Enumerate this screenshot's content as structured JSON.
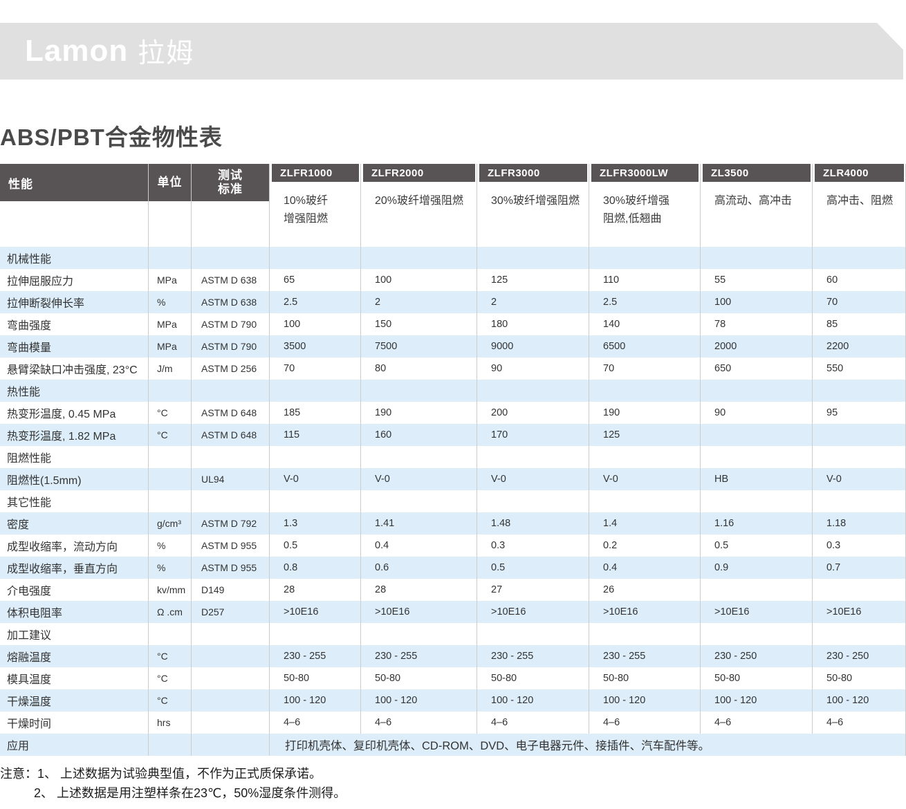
{
  "banner": {
    "brand_latin": "Lamon",
    "brand_cn": "拉姆"
  },
  "page_title": "ABS/PBT合金物性表",
  "colors": {
    "banner_bg": "#e0e0e0",
    "header_bg": "#585355",
    "row_blue": "#ddeefa",
    "separator": "#cbcbcb"
  },
  "table": {
    "header": {
      "property": "性能",
      "unit": "单位",
      "standard": "测试\n标准"
    },
    "products": [
      {
        "name": "ZLFR1000",
        "desc": "10%玻纤\n增强阻燃"
      },
      {
        "name": "ZLFR2000",
        "desc": "20%玻纤增强阻燃"
      },
      {
        "name": "ZLFR3000",
        "desc": "30%玻纤增强阻燃"
      },
      {
        "name": "ZLFR3000LW",
        "desc": "30%玻纤增强\n阻燃,低翘曲"
      },
      {
        "name": "ZL3500",
        "desc": "高流动、高冲击"
      },
      {
        "name": "ZLR4000",
        "desc": "高冲击、阻燃"
      }
    ],
    "rows": [
      {
        "type": "section",
        "label": "机械性能"
      },
      {
        "type": "data",
        "label": "拉伸屈服应力",
        "unit": "MPa",
        "standard": "ASTM D 638",
        "values": [
          "65",
          "100",
          "125",
          "110",
          "55",
          "60"
        ]
      },
      {
        "type": "data",
        "label": "拉伸断裂伸长率",
        "unit": "%",
        "standard": "ASTM D 638",
        "values": [
          "2.5",
          "2",
          "2",
          "2.5",
          "100",
          "70"
        ]
      },
      {
        "type": "data",
        "label": "弯曲强度",
        "unit": "MPa",
        "standard": "ASTM D 790",
        "values": [
          "100",
          "150",
          "180",
          "140",
          "78",
          "85"
        ]
      },
      {
        "type": "data",
        "label": "弯曲模量",
        "unit": "MPa",
        "standard": "ASTM D 790",
        "values": [
          "3500",
          "7500",
          "9000",
          "6500",
          "2000",
          "2200"
        ]
      },
      {
        "type": "data",
        "label": "悬臂梁缺口冲击强度, 23°C",
        "unit": "J/m",
        "standard": "ASTM D 256",
        "values": [
          "70",
          "80",
          "90",
          "70",
          "650",
          "550"
        ]
      },
      {
        "type": "section",
        "label": "热性能"
      },
      {
        "type": "data",
        "label": "热变形温度, 0.45 MPa",
        "unit": "°C",
        "standard": "ASTM D 648",
        "values": [
          "185",
          "190",
          "200",
          "190",
          "90",
          "95"
        ]
      },
      {
        "type": "data",
        "label": "热变形温度, 1.82 MPa",
        "unit": "°C",
        "standard": "ASTM D 648",
        "values": [
          "115",
          "160",
          "170",
          "125",
          "",
          ""
        ]
      },
      {
        "type": "section",
        "label": "阻燃性能"
      },
      {
        "type": "data",
        "label": "阻燃性(1.5mm)",
        "unit": "",
        "standard": "UL94",
        "values": [
          "V-0",
          "V-0",
          "V-0",
          "V-0",
          "HB",
          "V-0"
        ]
      },
      {
        "type": "section",
        "label": "其它性能"
      },
      {
        "type": "data",
        "label": "密度",
        "unit": "g/cm³",
        "standard": "ASTM D 792",
        "values": [
          "1.3",
          "1.41",
          "1.48",
          "1.4",
          "1.16",
          "1.18"
        ]
      },
      {
        "type": "data",
        "label": "成型收缩率，流动方向",
        "unit": "%",
        "standard": "ASTM D 955",
        "values": [
          "0.5",
          "0.4",
          "0.3",
          "0.2",
          "0.5",
          "0.3"
        ]
      },
      {
        "type": "data",
        "label": "成型收缩率，垂直方向",
        "unit": "%",
        "standard": "ASTM D 955",
        "values": [
          "0.8",
          "0.6",
          "0.5",
          "0.4",
          "0.9",
          "0.7"
        ]
      },
      {
        "type": "data",
        "label": "介电强度",
        "unit": "kv/mm",
        "standard": "D149",
        "values": [
          "28",
          "28",
          "27",
          "26",
          "",
          ""
        ]
      },
      {
        "type": "data",
        "label": "体积电阻率",
        "unit": "Ω .cm",
        "standard": "D257",
        "values": [
          ">10E16",
          ">10E16",
          ">10E16",
          ">10E16",
          ">10E16",
          ">10E16"
        ]
      },
      {
        "type": "section",
        "label": "加工建议"
      },
      {
        "type": "data",
        "label": "熔融温度",
        "unit": "°C",
        "standard": "",
        "values": [
          "230 - 255",
          "230 - 255",
          "230 - 255",
          "230 - 255",
          "230 - 250",
          "230 - 250"
        ]
      },
      {
        "type": "data",
        "label": "模具温度",
        "unit": "°C",
        "standard": "",
        "values": [
          "50-80",
          "50-80",
          "50-80",
          "50-80",
          "50-80",
          "50-80"
        ]
      },
      {
        "type": "data",
        "label": "干燥温度",
        "unit": "°C",
        "standard": "",
        "values": [
          "100 - 120",
          "100 - 120",
          "100 - 120",
          "100 - 120",
          "100 - 120",
          "100 - 120"
        ]
      },
      {
        "type": "data",
        "label": "干燥时间",
        "unit": "hrs",
        "standard": "",
        "values": [
          "4–6",
          "4–6",
          "4–6",
          "4–6",
          "4–6",
          "4–6"
        ]
      },
      {
        "type": "span",
        "label": "应用",
        "text": "打印机壳体、复印机壳体、CD-ROM、DVD、电子电器元件、接插件、汽车配件等。"
      }
    ]
  },
  "notes": {
    "line1": "注意：1、 上述数据为试验典型值，不作为正式质保承诺。",
    "line2": "2、 上述数据是用注塑样条在23℃，50%湿度条件测得。"
  }
}
